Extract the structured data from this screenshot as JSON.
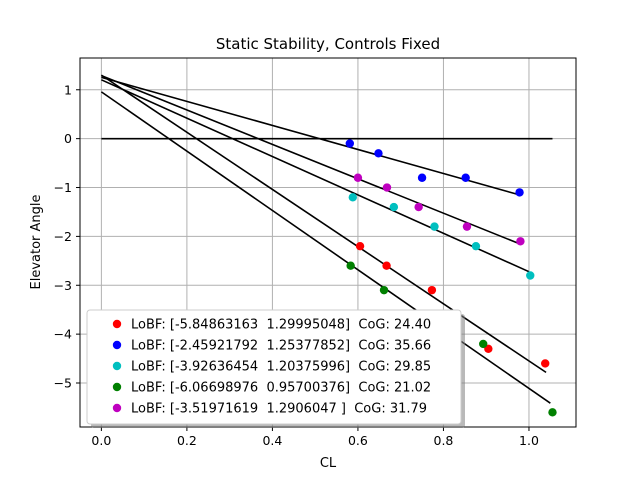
{
  "chart_data": {
    "type": "scatter",
    "title": "Static Stability, Controls Fixed",
    "xlabel": "CL",
    "ylabel": "Elevator Angle",
    "xlim": [
      -0.05,
      1.11
    ],
    "ylim": [
      -5.9,
      1.65
    ],
    "xticks": [
      0.0,
      0.2,
      0.4,
      0.6,
      0.8,
      1.0
    ],
    "xtick_labels": [
      "0.0",
      "0.2",
      "0.4",
      "0.6",
      "0.8",
      "1.0"
    ],
    "yticks": [
      1,
      0,
      -1,
      -2,
      -3,
      -4,
      -5
    ],
    "ytick_labels": [
      "1",
      "0",
      "−1",
      "−2",
      "−3",
      "−4",
      "−5"
    ],
    "grid": true,
    "legend_position": "lower-left",
    "zero_line": {
      "x": [
        0.0,
        1.055
      ],
      "y": 0
    },
    "series": [
      {
        "name": "LoBF: [-5.84863163  1.29995048]  CoG: 24.40",
        "color": "#ff0000",
        "slope": -5.84863163,
        "intercept": 1.29995048,
        "fit_x": [
          0.0,
          1.04
        ],
        "points": [
          [
            0.605,
            -2.2
          ],
          [
            0.667,
            -2.6
          ],
          [
            0.773,
            -3.1
          ],
          [
            0.905,
            -4.3
          ],
          [
            1.038,
            -4.6
          ]
        ]
      },
      {
        "name": "LoBF: [-2.45921792  1.25377852]  CoG: 35.66",
        "color": "#0000ff",
        "slope": -2.45921792,
        "intercept": 1.25377852,
        "fit_x": [
          0.0,
          0.98
        ],
        "points": [
          [
            0.581,
            -0.1
          ],
          [
            0.648,
            -0.3
          ],
          [
            0.75,
            -0.8
          ],
          [
            0.852,
            -0.8
          ],
          [
            0.978,
            -1.1
          ]
        ]
      },
      {
        "name": "LoBF: [-3.92636454  1.20375996]  CoG: 29.85",
        "color": "#00bfbf",
        "slope": -3.92636454,
        "intercept": 1.20375996,
        "fit_x": [
          0.0,
          1.0
        ],
        "points": [
          [
            0.588,
            -1.2
          ],
          [
            0.684,
            -1.4
          ],
          [
            0.779,
            -1.8
          ],
          [
            0.876,
            -2.2
          ],
          [
            1.003,
            -2.8
          ]
        ]
      },
      {
        "name": "LoBF: [-6.06698976  0.95700376]  CoG: 21.02",
        "color": "#008000",
        "slope": -6.06698976,
        "intercept": 0.95700376,
        "fit_x": [
          0.0,
          1.05
        ],
        "points": [
          [
            0.583,
            -2.6
          ],
          [
            0.661,
            -3.1
          ],
          [
            0.775,
            -3.8
          ],
          [
            0.893,
            -4.2
          ],
          [
            1.055,
            -5.6
          ]
        ]
      },
      {
        "name": "LoBF: [-3.51971619  1.2906047 ]  CoG: 31.79",
        "color": "#bf00bf",
        "slope": -3.51971619,
        "intercept": 1.2906047,
        "fit_x": [
          0.0,
          0.98
        ],
        "points": [
          [
            0.6,
            -0.8
          ],
          [
            0.668,
            -1.0
          ],
          [
            0.742,
            -1.4
          ],
          [
            0.855,
            -1.8
          ],
          [
            0.98,
            -2.1
          ]
        ]
      }
    ]
  }
}
